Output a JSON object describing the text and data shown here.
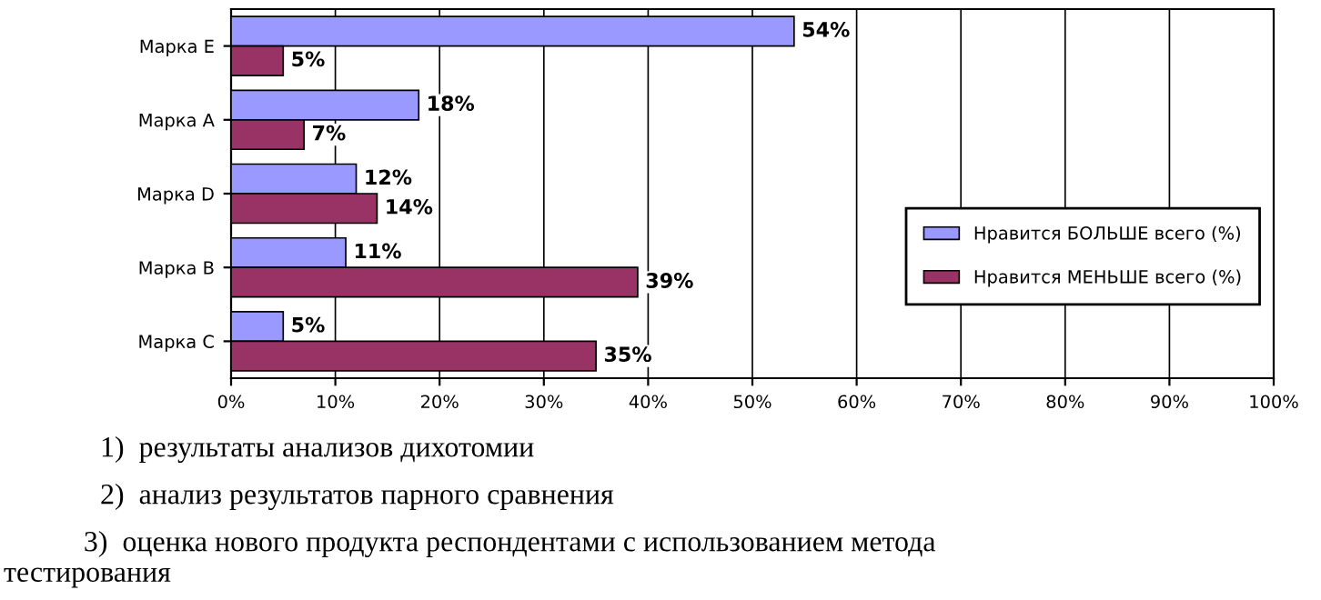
{
  "chart_data": {
    "type": "bar",
    "orientation": "horizontal",
    "categories": [
      "Марка E",
      "Марка A",
      "Марка D",
      "Марка B",
      "Марка C"
    ],
    "series": [
      {
        "name": "Нравится БОЛЬШЕ всего (%)",
        "color": "#9999ff",
        "values": [
          54,
          18,
          12,
          11,
          5
        ],
        "value_labels": [
          "54%",
          "18%",
          "12%",
          "11%",
          "5%"
        ]
      },
      {
        "name": "Нравится МЕНЬШЕ всего (%)",
        "color": "#993366",
        "values": [
          5,
          7,
          14,
          39,
          35
        ],
        "value_labels": [
          "5%",
          "7%",
          "14%",
          "39%",
          "35%"
        ]
      }
    ],
    "xlim": [
      0,
      100
    ],
    "xticks": [
      {
        "value": 0,
        "label": "0%"
      },
      {
        "value": 10,
        "label": "10%"
      },
      {
        "value": 20,
        "label": "20%"
      },
      {
        "value": 30,
        "label": "30%"
      },
      {
        "value": 40,
        "label": "40%"
      },
      {
        "value": 50,
        "label": "50%"
      },
      {
        "value": 60,
        "label": "60%"
      },
      {
        "value": 70,
        "label": "70%"
      },
      {
        "value": 80,
        "label": "80%"
      },
      {
        "value": 90,
        "label": "90%"
      },
      {
        "value": 100,
        "label": "100%"
      }
    ],
    "grid": "x",
    "legend": "right",
    "annotations": [
      "1)  результаты анализов дихотомии",
      "2)  анализ результатов парного сравнения",
      "3)  оценка нового продукта респондентами с использованием метода\nтестирования"
    ]
  }
}
